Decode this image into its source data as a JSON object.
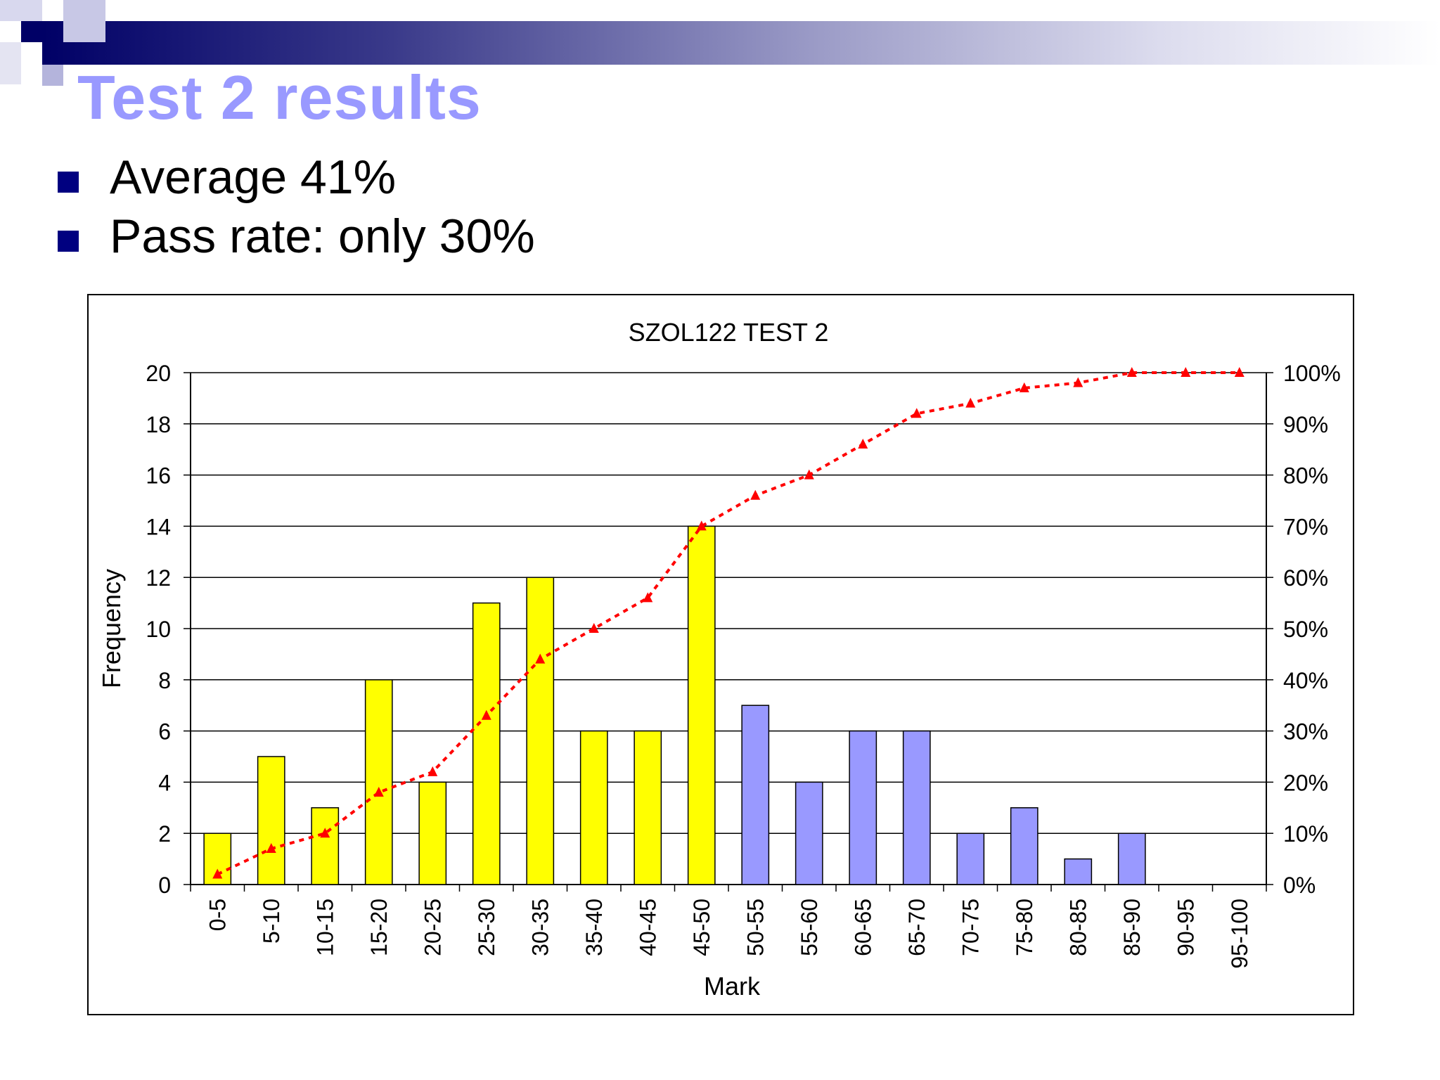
{
  "slide": {
    "title": "Test 2 results",
    "bullets": [
      "Average 41%",
      "Pass rate: only 30%"
    ]
  },
  "colors": {
    "title": "#9999ff",
    "bullet": "#000080",
    "bar_fail": "#ffff00",
    "bar_pass": "#9999ff",
    "cumulative": "#ff0000"
  },
  "chart_data": {
    "type": "bar",
    "title": "SZOL122 TEST 2",
    "xlabel": "Mark",
    "ylabel": "Frequency",
    "categories": [
      "0-5",
      "5-10",
      "10-15",
      "15-20",
      "20-25",
      "25-30",
      "30-35",
      "35-40",
      "40-45",
      "45-50",
      "50-55",
      "55-60",
      "60-65",
      "65-70",
      "70-75",
      "75-80",
      "80-85",
      "85-90",
      "90-95",
      "95-100"
    ],
    "series": [
      {
        "values": [
          2,
          5,
          3,
          8,
          4,
          11,
          12,
          6,
          6,
          14,
          7,
          4,
          6,
          6,
          2,
          3,
          1,
          2,
          0,
          0
        ],
        "colors": [
          "#ffff00",
          "#ffff00",
          "#ffff00",
          "#ffff00",
          "#ffff00",
          "#ffff00",
          "#ffff00",
          "#ffff00",
          "#ffff00",
          "#ffff00",
          "#9999ff",
          "#9999ff",
          "#9999ff",
          "#9999ff",
          "#9999ff",
          "#9999ff",
          "#9999ff",
          "#9999ff",
          "#9999ff",
          "#9999ff"
        ]
      },
      {
        "type": "line",
        "axis": "right",
        "style": "dotted",
        "marker": "triangle",
        "values": [
          2,
          7,
          10,
          18,
          22,
          33,
          44,
          50,
          56,
          70,
          76,
          80,
          86,
          92,
          94,
          97,
          98,
          100,
          100,
          100
        ]
      }
    ],
    "ylim": [
      0,
      20
    ],
    "yticks": [
      "0",
      "2",
      "4",
      "6",
      "8",
      "10",
      "12",
      "14",
      "16",
      "18",
      "20"
    ],
    "y2lim": [
      0,
      100
    ],
    "y2ticks": [
      "0%",
      "10%",
      "20%",
      "30%",
      "40%",
      "50%",
      "60%",
      "70%",
      "80%",
      "90%",
      "100%"
    ],
    "grid": true,
    "legend": "none"
  }
}
